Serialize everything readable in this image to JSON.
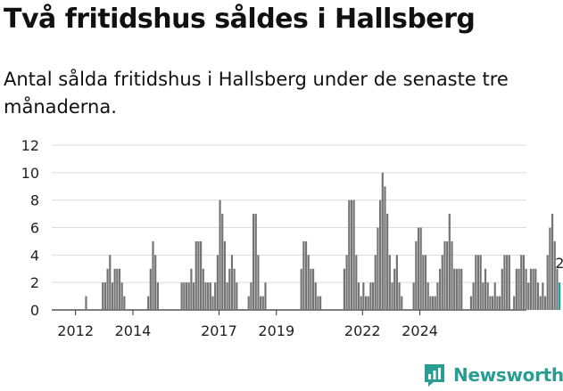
{
  "title": "Två fritidshus såldes i Hallsberg",
  "subtitle": "Antal sålda fritidshus i Hallsberg under de senaste tre månaderna.",
  "logo": {
    "text": "Newsworthy",
    "icon": "newsworthy-logo-icon"
  },
  "colors": {
    "bar": "#747474",
    "highlight": "#1a9e96",
    "grid": "#dcdcdc",
    "axis": "#333333"
  },
  "chart_data": {
    "type": "bar",
    "title": "Två fritidshus såldes i Hallsberg",
    "subtitle": "Antal sålda fritidshus i Hallsberg under de senaste tre månaderna.",
    "xlabel": "",
    "ylabel": "",
    "ylim": [
      0,
      12
    ],
    "yticks": [
      0,
      2,
      4,
      6,
      8,
      10,
      12
    ],
    "xticks": [
      "2012",
      "2014",
      "2017",
      "2019",
      "2022",
      "2024"
    ],
    "grid": "horizontal",
    "legend": "none",
    "start_month": "2011-01",
    "values": [
      0,
      0,
      0,
      0,
      0,
      0,
      0,
      0,
      0,
      0,
      0,
      0,
      0,
      0,
      0,
      0,
      1,
      0,
      0,
      0,
      0,
      0,
      0,
      2,
      2,
      3,
      4,
      2,
      3,
      3,
      3,
      2,
      1,
      0,
      0,
      0,
      0,
      0,
      0,
      0,
      0,
      0,
      1,
      3,
      5,
      4,
      2,
      0,
      0,
      0,
      0,
      0,
      0,
      0,
      0,
      0,
      2,
      2,
      2,
      2,
      3,
      2,
      5,
      5,
      5,
      3,
      2,
      2,
      2,
      1,
      2,
      4,
      8,
      7,
      5,
      2,
      3,
      4,
      3,
      2,
      0,
      0,
      0,
      0,
      1,
      2,
      7,
      7,
      4,
      1,
      1,
      2,
      0,
      0,
      0,
      0,
      0,
      0,
      0,
      0,
      0,
      0,
      0,
      0,
      0,
      0,
      3,
      5,
      5,
      4,
      3,
      3,
      2,
      1,
      1,
      0,
      0,
      0,
      0,
      0,
      0,
      0,
      0,
      0,
      3,
      4,
      8,
      8,
      8,
      4,
      2,
      1,
      2,
      1,
      1,
      2,
      2,
      4,
      6,
      8,
      10,
      9,
      7,
      4,
      2,
      3,
      4,
      2,
      1,
      0,
      0,
      0,
      0,
      2,
      5,
      6,
      6,
      4,
      4,
      2,
      1,
      1,
      1,
      2,
      3,
      4,
      5,
      5,
      7,
      5,
      3,
      3,
      3,
      3,
      0,
      0,
      0,
      1,
      2,
      4,
      4,
      4,
      2,
      3,
      2,
      1,
      1,
      2,
      1,
      1,
      3,
      4,
      4,
      4,
      0,
      1,
      3,
      3,
      4,
      4,
      3,
      2,
      3,
      3,
      3,
      2,
      1,
      2,
      1,
      4,
      6,
      7,
      5,
      3,
      2
    ],
    "last_value": "2"
  }
}
